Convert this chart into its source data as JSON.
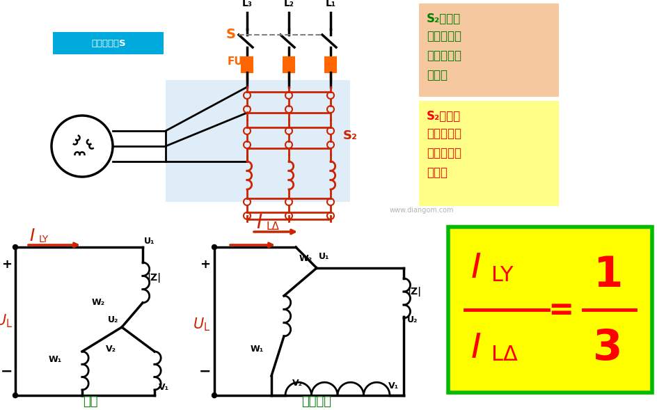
{
  "bg_color": "#f0f0f0",
  "box1_bg": "#f5c8a0",
  "box1_text_color": "#008000",
  "box1_title": "S₂上合：",
  "box1_line1": "切除自耦变",
  "box1_line2": "压器，全压",
  "box1_line3": "工作。",
  "box2_bg": "#ffff88",
  "box2_text_color": "#ff0000",
  "box2_title": "S₂下合：",
  "box2_line1": "接入自耦变",
  "box2_line2": "压器，降压",
  "box2_line3": "起动。",
  "formula_bg": "#ffff00",
  "formula_border": "#00bb00",
  "formula_color": "#ff0000",
  "start_label": "起动",
  "run_label": "正常运行",
  "label_color": "#008000",
  "switch_label_bg": "#00aadd",
  "switch_label_text": "合刀闸开关S",
  "watermark": "www.diangom.com",
  "red": "#cc2200",
  "orange": "#ff6600"
}
